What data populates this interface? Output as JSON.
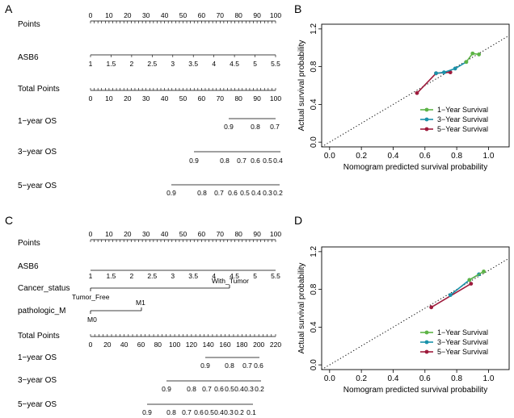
{
  "chart_data": [
    {
      "panel": "A",
      "type": "nomogram",
      "rows": [
        {
          "label": "Points",
          "ticks": [
            "0",
            "10",
            "20",
            "30",
            "40",
            "50",
            "60",
            "70",
            "80",
            "90",
            "100"
          ]
        },
        {
          "label": "ASB6",
          "ticks": [
            "1",
            "1.5",
            "2",
            "2.5",
            "3",
            "3.5",
            "4",
            "4.5",
            "5",
            "5.5"
          ]
        },
        {
          "label": "Total Points",
          "ticks": [
            "0",
            "10",
            "20",
            "30",
            "40",
            "50",
            "60",
            "70",
            "80",
            "90",
            "100"
          ]
        },
        {
          "label": "1−year OS",
          "ticks": [
            "0.9",
            "0.8",
            "0.7"
          ]
        },
        {
          "label": "3−year OS",
          "ticks": [
            "0.9",
            "0.8",
            "0.7",
            "0.6",
            "0.5",
            "0.4"
          ]
        },
        {
          "label": "5−year OS",
          "ticks": [
            "0.9",
            "0.8",
            "0.7",
            "0.6",
            "0.5",
            "0.4",
            "0.3",
            "0.2"
          ]
        }
      ]
    },
    {
      "panel": "B",
      "type": "line",
      "xlabel": "Nomogram predicted survival probability",
      "ylabel": "Actual survival probability",
      "xlim": [
        -0.05,
        1.13
      ],
      "ylim": [
        -0.05,
        1.25
      ],
      "xticks": [
        "0.0",
        "0.2",
        "0.4",
        "0.6",
        "0.8",
        "1.0"
      ],
      "yticks": [
        "0.0",
        "0.4",
        "0.8",
        "1.2"
      ],
      "series": [
        {
          "name": "1−Year Survival",
          "color": "#5DB446",
          "x": [
            0.86,
            0.9,
            0.94
          ],
          "y": [
            0.85,
            0.94,
            0.93
          ]
        },
        {
          "name": "3−Year Survival",
          "color": "#1A92AA",
          "x": [
            0.67,
            0.72,
            0.79,
            0.86
          ],
          "y": [
            0.73,
            0.74,
            0.78,
            0.85
          ]
        },
        {
          "name": "5−Year Survival",
          "color": "#9E1B3C",
          "x": [
            0.55,
            0.67,
            0.76
          ],
          "y": [
            0.52,
            0.73,
            0.74
          ]
        }
      ]
    },
    {
      "panel": "C",
      "type": "nomogram",
      "rows": [
        {
          "label": "Points",
          "ticks": [
            "0",
            "10",
            "20",
            "30",
            "40",
            "50",
            "60",
            "70",
            "80",
            "90",
            "100"
          ]
        },
        {
          "label": "ASB6",
          "ticks": [
            "1",
            "1.5",
            "2",
            "2.5",
            "3",
            "3.5",
            "4",
            "4.5",
            "5",
            "5.5"
          ]
        },
        {
          "label": "Cancer_status",
          "ticks": [
            "Tumor_Free",
            "With_Tumor"
          ]
        },
        {
          "label": "pathologic_M",
          "ticks": [
            "M0",
            "M1"
          ]
        },
        {
          "label": "Total Points",
          "ticks": [
            "0",
            "20",
            "40",
            "60",
            "80",
            "100",
            "120",
            "140",
            "160",
            "180",
            "200",
            "220"
          ]
        },
        {
          "label": "1−year OS",
          "ticks": [
            "0.9",
            "0.8",
            "0.7",
            "0.6"
          ]
        },
        {
          "label": "3−year OS",
          "ticks": [
            "0.9",
            "0.8",
            "0.7",
            "0.6",
            "0.5",
            "0.4",
            "0.3",
            "0.2"
          ]
        },
        {
          "label": "5−year OS",
          "ticks": [
            "0.9",
            "0.8",
            "0.7",
            "0.6",
            "0.5",
            "0.4",
            "0.3",
            "0.2",
            "0.1"
          ]
        }
      ]
    },
    {
      "panel": "D",
      "type": "line",
      "xlabel": "Nomogram predicted survival probability",
      "ylabel": "Actual survival probability",
      "xlim": [
        -0.05,
        1.13
      ],
      "ylim": [
        -0.05,
        1.25
      ],
      "xticks": [
        "0.0",
        "0.2",
        "0.4",
        "0.6",
        "0.8",
        "1.0"
      ],
      "yticks": [
        "0.0",
        "0.4",
        "0.8",
        "1.2"
      ],
      "series": [
        {
          "name": "1−Year Survival",
          "color": "#5DB446",
          "x": [
            0.88,
            0.97
          ],
          "y": [
            0.9,
            0.99
          ]
        },
        {
          "name": "3−Year Survival",
          "color": "#1A92AA",
          "x": [
            0.76,
            0.88,
            0.94
          ],
          "y": [
            0.74,
            0.9,
            0.96
          ]
        },
        {
          "name": "5−Year Survival",
          "color": "#9E1B3C",
          "x": [
            0.64,
            0.89
          ],
          "y": [
            0.61,
            0.86
          ]
        }
      ]
    }
  ]
}
